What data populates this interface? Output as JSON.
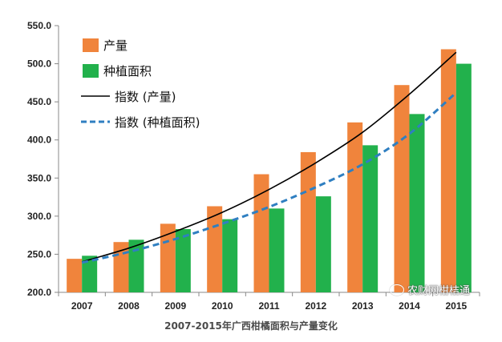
{
  "chart_data": {
    "type": "bar",
    "categories": [
      "2007",
      "2008",
      "2009",
      "2010",
      "2011",
      "2012",
      "2013",
      "2014",
      "2015"
    ],
    "series": [
      {
        "name": "产量",
        "kind": "bar",
        "color": "#f0843c",
        "values": [
          244,
          266,
          290,
          313,
          355,
          384,
          423,
          472,
          519
        ]
      },
      {
        "name": "种植面积",
        "kind": "bar",
        "color": "#22b14c",
        "values": [
          248,
          269,
          283,
          296,
          310,
          326,
          393,
          434,
          500
        ]
      },
      {
        "name": "指数 (产量)",
        "kind": "line",
        "color": "#000000",
        "dash": "solid",
        "values": [
          240,
          258,
          280,
          305,
          335,
          370,
          410,
          460,
          515
        ]
      },
      {
        "name": "指数 (种植面积)",
        "kind": "line",
        "color": "#2f7fc1",
        "dash": "dashed",
        "values": [
          239,
          253,
          270,
          290,
          312,
          338,
          368,
          408,
          462
        ]
      }
    ],
    "ylim": [
      200,
      550
    ],
    "ytick_step": 50,
    "ytick_labels": [
      "200.0",
      "250.0",
      "300.0",
      "350.0",
      "400.0",
      "450.0",
      "500.0",
      "550.0"
    ],
    "grid": false,
    "legend_position": "top-left",
    "caption": "2007-2015年广西柑橘面积与产量变化"
  },
  "watermark": "农财网柑桔通"
}
